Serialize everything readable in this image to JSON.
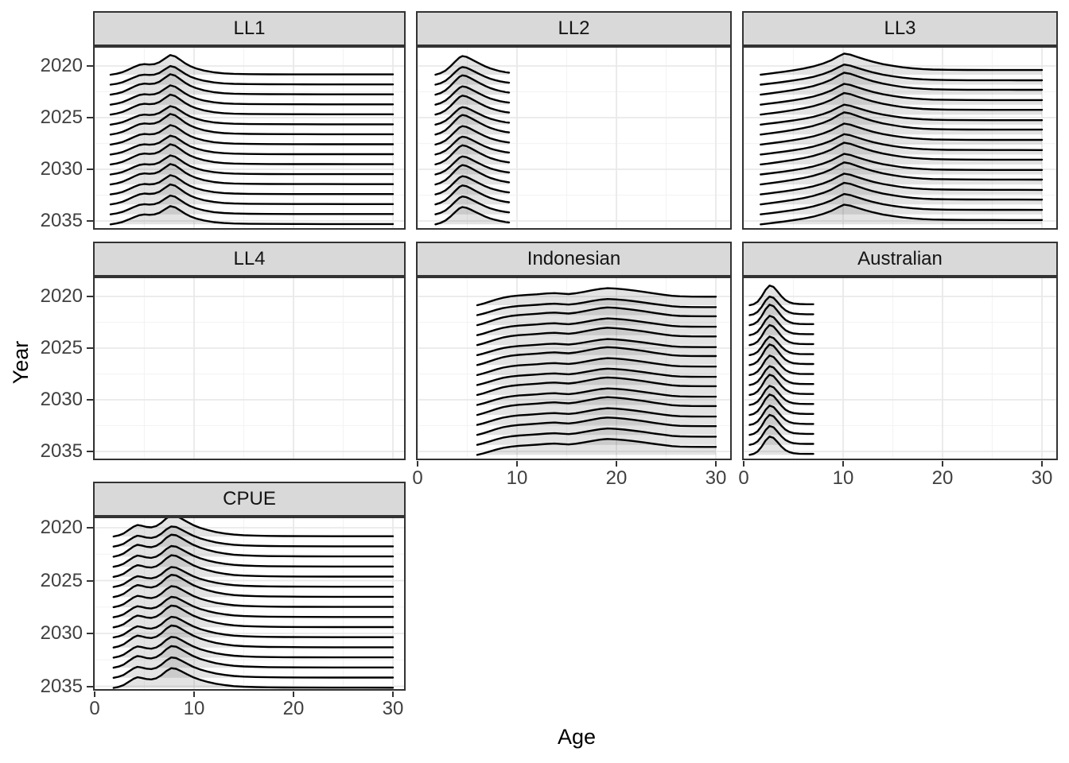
{
  "figure": {
    "xlabel": "Age",
    "ylabel": "Year"
  },
  "colors": {
    "background": "#ffffff",
    "strip_fill": "#d9d9d9",
    "strip_text": "#141414",
    "panel_border": "#333333",
    "grid_major": "#e9e9e9",
    "grid_minor": "#f4f4f4",
    "tick_mark": "#333333",
    "tick_label": "#404040",
    "axis_title": "#000000",
    "ridge_stroke": "#000000",
    "ridge_fill": "rgba(55,55,55,0.14)"
  },
  "chart_data": {
    "type": "ridgeline",
    "title": "",
    "xlabel": "Age",
    "ylabel": "Year",
    "x_range": [
      0,
      30
    ],
    "x_ticks": [
      0,
      10,
      20,
      30
    ],
    "y_ticks": [
      2020,
      2025,
      2030,
      2035
    ],
    "y_axis_reversed": true,
    "grid": {
      "major_x": [
        0,
        10,
        20,
        30
      ],
      "minor_x": [
        5,
        15,
        25
      ],
      "major_y": [
        2020,
        2025,
        2030,
        2035
      ],
      "minor_y": [
        2022.5,
        2027.5,
        2032.5
      ]
    },
    "legend_position": "none",
    "years": [
      2020,
      2021,
      2022,
      2023,
      2024,
      2025,
      2026,
      2027,
      2028,
      2029,
      2030,
      2031,
      2032,
      2033,
      2034,
      2035
    ],
    "year_scale_jitter": [
      1.0,
      0.95,
      1.04,
      0.98,
      1.02,
      0.94,
      1.05,
      0.99,
      0.96,
      1.03,
      0.97,
      1.04,
      0.98,
      1.02,
      0.96,
      0.93
    ],
    "facets": [
      {
        "label": "LL1",
        "row": 0,
        "col": 0,
        "empty": false,
        "age_span": [
          1.6,
          30
        ],
        "peak_age": 7.6,
        "scale": 1.9,
        "profile": [
          [
            1.6,
            0
          ],
          [
            2.2,
            0.05
          ],
          [
            2.8,
            0.13
          ],
          [
            3.4,
            0.26
          ],
          [
            4.0,
            0.4
          ],
          [
            4.5,
            0.5
          ],
          [
            5.0,
            0.54
          ],
          [
            5.5,
            0.52
          ],
          [
            6.0,
            0.54
          ],
          [
            6.5,
            0.63
          ],
          [
            7.0,
            0.8
          ],
          [
            7.6,
            1.0
          ],
          [
            8.1,
            0.93
          ],
          [
            8.6,
            0.76
          ],
          [
            9.1,
            0.58
          ],
          [
            9.6,
            0.44
          ],
          [
            10.2,
            0.32
          ],
          [
            11.0,
            0.21
          ],
          [
            12.0,
            0.12
          ],
          [
            13.0,
            0.07
          ],
          [
            14.0,
            0.045
          ],
          [
            15.5,
            0.03
          ],
          [
            17.5,
            0.022
          ],
          [
            20,
            0.018
          ],
          [
            23,
            0.016
          ],
          [
            26,
            0.015
          ],
          [
            30,
            0.015
          ]
        ]
      },
      {
        "label": "LL2",
        "row": 0,
        "col": 1,
        "empty": false,
        "age_span": [
          1.8,
          9.2
        ],
        "peak_age": 4.5,
        "scale": 1.8,
        "profile": [
          [
            1.8,
            0
          ],
          [
            2.3,
            0.08
          ],
          [
            2.8,
            0.22
          ],
          [
            3.3,
            0.45
          ],
          [
            3.8,
            0.72
          ],
          [
            4.2,
            0.92
          ],
          [
            4.5,
            1.0
          ],
          [
            4.9,
            0.96
          ],
          [
            5.3,
            0.86
          ],
          [
            5.8,
            0.72
          ],
          [
            6.3,
            0.58
          ],
          [
            6.8,
            0.45
          ],
          [
            7.3,
            0.34
          ],
          [
            7.8,
            0.26
          ],
          [
            8.3,
            0.19
          ],
          [
            8.8,
            0.14
          ],
          [
            9.2,
            0.11
          ]
        ]
      },
      {
        "label": "LL3",
        "row": 0,
        "col": 2,
        "empty": false,
        "age_span": [
          1.7,
          30
        ],
        "peak_age": 10.1,
        "scale": 2.05,
        "profile": [
          [
            1.7,
            0
          ],
          [
            2.4,
            0.04
          ],
          [
            3.2,
            0.09
          ],
          [
            4.0,
            0.14
          ],
          [
            5.0,
            0.21
          ],
          [
            6.0,
            0.29
          ],
          [
            7.0,
            0.39
          ],
          [
            8.0,
            0.53
          ],
          [
            8.8,
            0.68
          ],
          [
            9.5,
            0.86
          ],
          [
            10.1,
            1.0
          ],
          [
            10.7,
            0.95
          ],
          [
            11.4,
            0.84
          ],
          [
            12.2,
            0.72
          ],
          [
            13.0,
            0.61
          ],
          [
            14.0,
            0.5
          ],
          [
            15.0,
            0.42
          ],
          [
            16.0,
            0.35
          ],
          [
            17.0,
            0.3
          ],
          [
            18.0,
            0.266
          ],
          [
            19.0,
            0.245
          ],
          [
            20.5,
            0.232
          ],
          [
            22.5,
            0.225
          ],
          [
            25,
            0.222
          ],
          [
            27.5,
            0.221
          ],
          [
            30,
            0.22
          ]
        ]
      },
      {
        "label": "LL4",
        "row": 1,
        "col": 0,
        "empty": true,
        "age_span": null,
        "peak_age": null,
        "scale": 0,
        "profile": []
      },
      {
        "label": "Indonesian",
        "row": 1,
        "col": 1,
        "empty": false,
        "age_span": [
          6,
          30
        ],
        "peak_age": 19.1,
        "scale": 1.65,
        "profile": [
          [
            6.0,
            0
          ],
          [
            6.6,
            0.09
          ],
          [
            7.2,
            0.2
          ],
          [
            7.9,
            0.33
          ],
          [
            8.6,
            0.44
          ],
          [
            9.4,
            0.52
          ],
          [
            10.2,
            0.57
          ],
          [
            11.0,
            0.6
          ],
          [
            12.0,
            0.64
          ],
          [
            13.0,
            0.69
          ],
          [
            13.8,
            0.71
          ],
          [
            14.5,
            0.68
          ],
          [
            15.2,
            0.655
          ],
          [
            15.9,
            0.7
          ],
          [
            16.7,
            0.78
          ],
          [
            17.6,
            0.88
          ],
          [
            18.4,
            0.96
          ],
          [
            19.1,
            1.0
          ],
          [
            19.9,
            0.975
          ],
          [
            20.8,
            0.93
          ],
          [
            21.8,
            0.86
          ],
          [
            22.8,
            0.78
          ],
          [
            23.8,
            0.69
          ],
          [
            24.8,
            0.61
          ],
          [
            25.6,
            0.55
          ],
          [
            26.4,
            0.52
          ],
          [
            27.5,
            0.505
          ],
          [
            29,
            0.5
          ],
          [
            30,
            0.5
          ]
        ]
      },
      {
        "label": "Australian",
        "row": 1,
        "col": 2,
        "empty": false,
        "age_span": [
          0.6,
          7
        ],
        "peak_age": 2.6,
        "scale": 1.9,
        "profile": [
          [
            0.6,
            0
          ],
          [
            1.0,
            0.05
          ],
          [
            1.4,
            0.18
          ],
          [
            1.8,
            0.44
          ],
          [
            2.2,
            0.78
          ],
          [
            2.6,
            1.0
          ],
          [
            3.0,
            0.93
          ],
          [
            3.4,
            0.7
          ],
          [
            3.8,
            0.45
          ],
          [
            4.2,
            0.26
          ],
          [
            4.6,
            0.15
          ],
          [
            5.0,
            0.09
          ],
          [
            5.6,
            0.06
          ],
          [
            6.3,
            0.05
          ],
          [
            7.0,
            0.05
          ]
        ]
      },
      {
        "label": "CPUE",
        "row": 2,
        "col": 0,
        "empty": false,
        "age_span": [
          1.9,
          30
        ],
        "peak_age": 7.7,
        "scale": 2.05,
        "profile": [
          [
            1.9,
            0
          ],
          [
            2.4,
            0.05
          ],
          [
            2.9,
            0.14
          ],
          [
            3.4,
            0.3
          ],
          [
            3.9,
            0.46
          ],
          [
            4.3,
            0.54
          ],
          [
            4.7,
            0.51
          ],
          [
            5.2,
            0.45
          ],
          [
            5.7,
            0.43
          ],
          [
            6.2,
            0.49
          ],
          [
            6.7,
            0.64
          ],
          [
            7.2,
            0.85
          ],
          [
            7.7,
            1.0
          ],
          [
            8.2,
            0.97
          ],
          [
            8.7,
            0.85
          ],
          [
            9.3,
            0.69
          ],
          [
            9.9,
            0.54
          ],
          [
            10.6,
            0.41
          ],
          [
            11.4,
            0.3
          ],
          [
            12.2,
            0.21
          ],
          [
            13.1,
            0.14
          ],
          [
            14.0,
            0.09
          ],
          [
            15.0,
            0.06
          ],
          [
            16.2,
            0.04
          ],
          [
            17.5,
            0.027
          ],
          [
            19,
            0.02
          ],
          [
            21,
            0.015
          ],
          [
            24,
            0.012
          ],
          [
            27,
            0.011
          ],
          [
            30,
            0.01
          ]
        ]
      }
    ]
  }
}
